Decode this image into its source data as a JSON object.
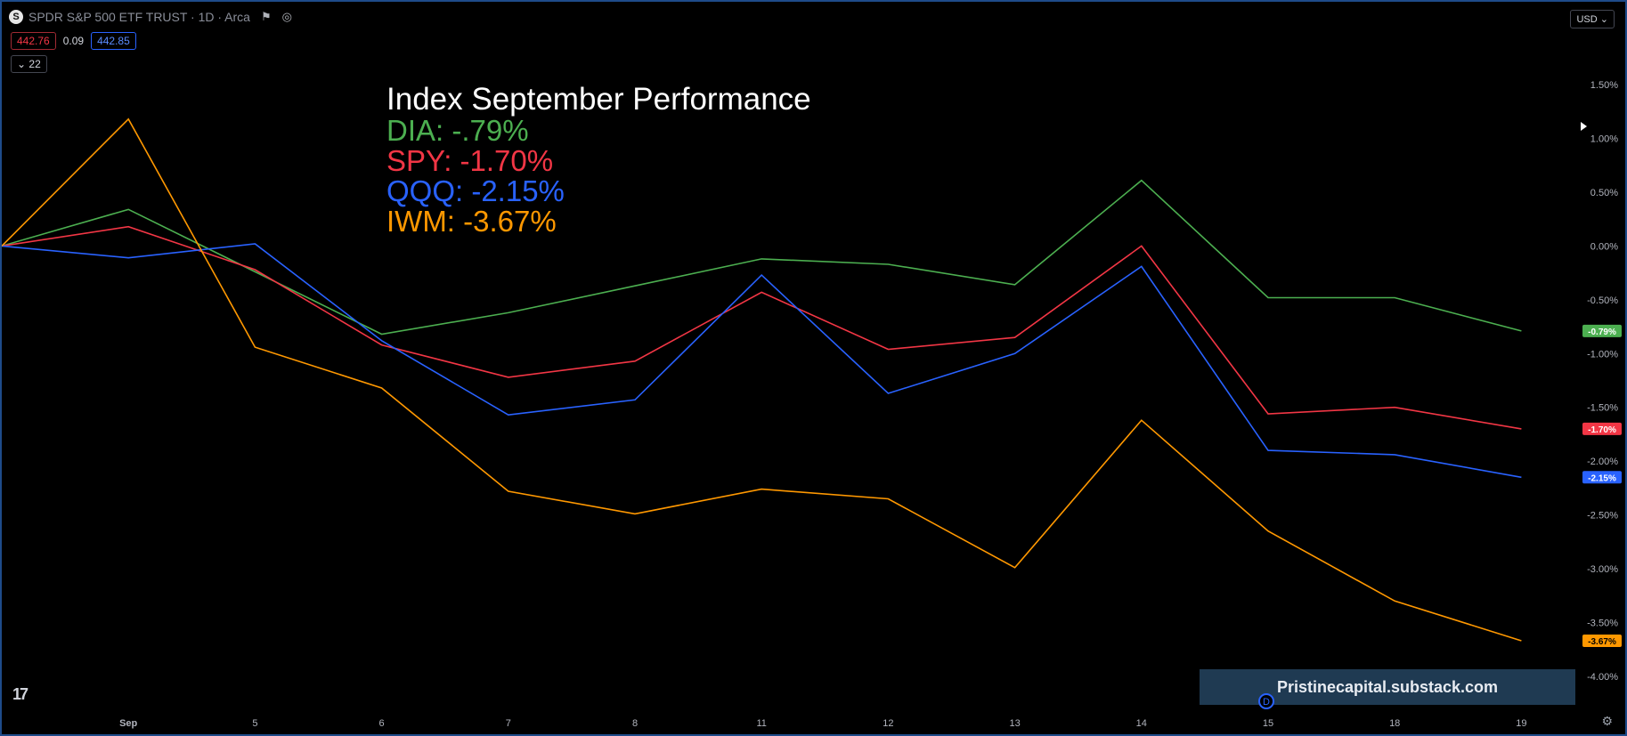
{
  "header": {
    "symbol_badge": "S",
    "title": "SPDR S&P 500 ETF TRUST · 1D · Arca",
    "price_low": "442.76",
    "price_change": "0.09",
    "price_high": "442.85",
    "indicator_count": "22",
    "currency": "USD"
  },
  "watermark": "Pristinecapital.substack.com",
  "tv_logo": "17",
  "event_marker": "D",
  "chart_data": {
    "type": "line",
    "title": "Index September Performance",
    "x": [
      "",
      "Sep",
      "5",
      "6",
      "7",
      "8",
      "11",
      "12",
      "13",
      "14",
      "15",
      "18",
      "19"
    ],
    "x_tick_labels": [
      "Sep",
      "5",
      "6",
      "7",
      "8",
      "11",
      "12",
      "13",
      "14",
      "15",
      "18",
      "19"
    ],
    "y_tick_labels": [
      "1.50%",
      "1.00%",
      "0.50%",
      "0.00%",
      "-0.50%",
      "-1.00%",
      "-1.50%",
      "-2.00%",
      "-2.50%",
      "-3.00%",
      "-3.50%",
      "-4.00%"
    ],
    "ylim": [
      -4.1,
      1.65
    ],
    "series": [
      {
        "name": "DIA",
        "label": "DIA: -.79%",
        "last": "-0.79%",
        "color": "#4caf50",
        "values": [
          0.0,
          0.34,
          -0.24,
          -0.82,
          -0.62,
          -0.37,
          -0.12,
          -0.17,
          -0.36,
          0.61,
          -0.48,
          -0.48,
          -0.79
        ]
      },
      {
        "name": "SPY",
        "label": "SPY: -1.70%",
        "last": "-1.70%",
        "color": "#f23645",
        "values": [
          0.0,
          0.18,
          -0.22,
          -0.92,
          -1.22,
          -1.07,
          -0.43,
          -0.96,
          -0.85,
          0.0,
          -1.56,
          -1.5,
          -1.7
        ]
      },
      {
        "name": "QQQ",
        "label": "QQQ: -2.15%",
        "last": "-2.15%",
        "color": "#2962ff",
        "values": [
          0.0,
          -0.11,
          0.02,
          -0.88,
          -1.57,
          -1.43,
          -0.27,
          -1.37,
          -1.0,
          -0.19,
          -1.9,
          -1.94,
          -2.15
        ]
      },
      {
        "name": "IWM",
        "label": "IWM: -3.67%",
        "last": "-3.67%",
        "color": "#ff9800",
        "values": [
          0.0,
          1.18,
          -0.94,
          -1.32,
          -2.28,
          -2.49,
          -2.26,
          -2.35,
          -2.99,
          -1.62,
          -2.65,
          -3.3,
          -3.67
        ]
      }
    ]
  }
}
